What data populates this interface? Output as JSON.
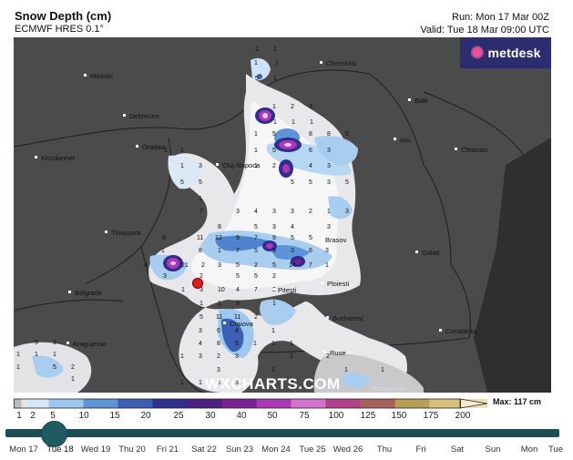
{
  "header": {
    "title": "Snow Depth (cm)",
    "model": "ECMWF HRES 0.1°",
    "run": "Run: Mon 17 Mar 00Z",
    "valid": "Valid: Tue 18 Mar 09:00 UTC"
  },
  "logo": {
    "text": "metdesk"
  },
  "watermark": "WXCHARTS.COM",
  "copyright": "©2025 Esri/OSM",
  "cities": [
    {
      "name": "Miskolc"
    },
    {
      "name": "Debrecen"
    },
    {
      "name": "Kecskemet"
    },
    {
      "name": "Oradea"
    },
    {
      "name": "Cluj-Napoca"
    },
    {
      "name": "Timisoara"
    },
    {
      "name": "Belgrade"
    },
    {
      "name": "Kragujevac"
    },
    {
      "name": "Chernivtsi"
    },
    {
      "name": "Balti"
    },
    {
      "name": "Iasi"
    },
    {
      "name": "Chisinau"
    },
    {
      "name": "Brasov"
    },
    {
      "name": "Galati"
    },
    {
      "name": "Pitesti"
    },
    {
      "name": "Ploiesti"
    },
    {
      "name": "Bucharest"
    },
    {
      "name": "Craiova"
    },
    {
      "name": "Constanta"
    },
    {
      "name": "Ruse"
    }
  ],
  "legend": {
    "max_label": "Max: 117 cm",
    "labels": [
      "1",
      "2",
      "5",
      "10",
      "15",
      "20",
      "25",
      "30",
      "40",
      "50",
      "75",
      "100",
      "125",
      "150",
      "175",
      "200"
    ],
    "colors": [
      "#bdbdbd",
      "#e6e6e6",
      "#d4e6f7",
      "#9cc8ef",
      "#5d93d8",
      "#3b5fb6",
      "#2e2e8e",
      "#4b1f86",
      "#7a1f97",
      "#ad36b9",
      "#d870d0",
      "#b63f8a",
      "#a8605a",
      "#b89f54",
      "#d8c27a",
      "#ede1b4"
    ]
  },
  "timeline": {
    "current": "Tue 18",
    "days": [
      "Mon 17",
      "Tue 18",
      "Wed 19",
      "Thu 20",
      "Fri 21",
      "Sat 22",
      "Sun 23",
      "Mon 24",
      "Tue 25",
      "Wed 26",
      "Thu",
      "Fri",
      "Sat",
      "Sun",
      "Mon",
      "Tue"
    ]
  }
}
